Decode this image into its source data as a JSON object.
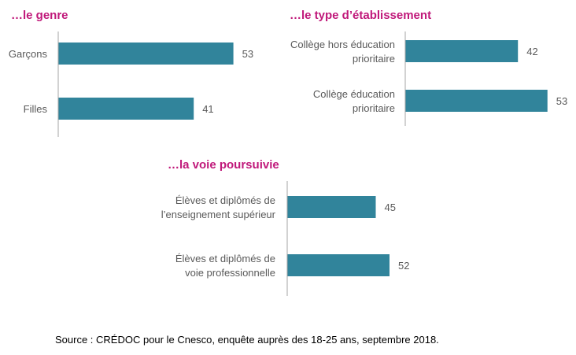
{
  "colors": {
    "bar": "#31849B",
    "title": "#C0187A",
    "axis": "#A6A6A6",
    "text": "#595959"
  },
  "chart_data": [
    {
      "type": "bar",
      "orientation": "horizontal",
      "title": "…le genre",
      "categories": [
        "Garçons",
        "Filles"
      ],
      "values": [
        53,
        41
      ]
    },
    {
      "type": "bar",
      "orientation": "horizontal",
      "title": "…le type d’établissement",
      "categories": [
        [
          "Collège hors éducation",
          "prioritaire"
        ],
        [
          "Collège éducation",
          "prioritaire"
        ]
      ],
      "values": [
        42,
        53
      ]
    },
    {
      "type": "bar",
      "orientation": "horizontal",
      "title": "…la voie poursuivie",
      "categories": [
        [
          "Élèves et diplômés de",
          "l’enseignement supérieur"
        ],
        [
          "Élèves et diplômés de",
          "voie professionnelle"
        ]
      ],
      "values": [
        45,
        52
      ]
    }
  ],
  "source": "Source : CRÉDOC pour le Cnesco, enquête auprès des 18-25 ans, septembre 2018."
}
